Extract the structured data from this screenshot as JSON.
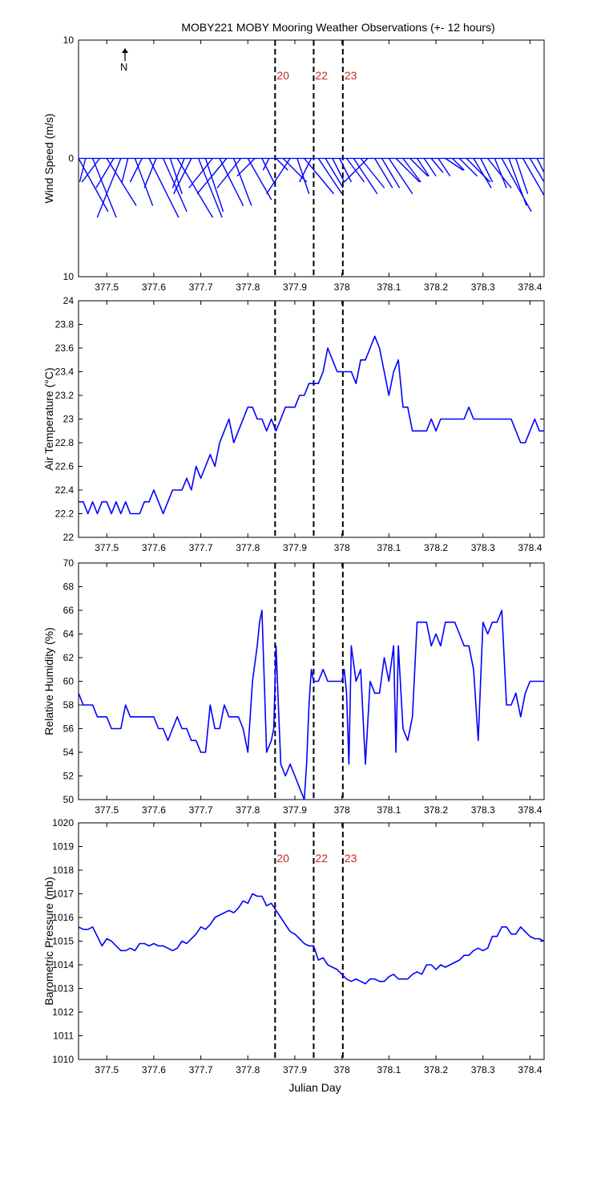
{
  "title": "MOBY221 MOBY Mooring Weather Observations (+- 12 hours)",
  "north_label": "N",
  "colors": {
    "series": "#0000ff",
    "marker_label": "#c0282a",
    "axis": "#000000"
  },
  "x_axis": {
    "label": "Julian Day",
    "xlim": [
      377.44,
      378.43
    ],
    "ticks": [
      377.5,
      377.6,
      377.7,
      377.8,
      377.9,
      378,
      378.1,
      378.2,
      378.3,
      378.4
    ],
    "tick_labels": [
      "377.5",
      "377.6",
      "377.7",
      "377.8",
      "377.9",
      "378",
      "378.1",
      "378.2",
      "378.3",
      "378.4"
    ]
  },
  "markers": [
    {
      "x": 377.858,
      "label": "20"
    },
    {
      "x": 377.94,
      "label": "22"
    },
    {
      "x": 378.002,
      "label": "23"
    }
  ],
  "chart_data": [
    {
      "type": "line",
      "subtype": "wind-stick",
      "ylabel": "Wind Speed (m/s)",
      "ylim": [
        -10,
        10
      ],
      "y_ticks": [
        -10,
        0,
        10
      ],
      "y_tick_labels": [
        "10",
        "0",
        "10"
      ],
      "show_marker_labels": true,
      "series": [
        {
          "name": "",
          "x": [
            377.44,
            377.455,
            377.47,
            377.485,
            377.5,
            377.515,
            377.53,
            377.545,
            377.56,
            377.575,
            377.59,
            377.605,
            377.62,
            377.635,
            377.65,
            377.665,
            377.68,
            377.695,
            377.71,
            377.725,
            377.74,
            377.755,
            377.77,
            377.785,
            377.8,
            377.815,
            377.83,
            377.845,
            377.86,
            377.875,
            377.89,
            377.905,
            377.92,
            377.935,
            377.95,
            377.965,
            377.98,
            377.995,
            378.01,
            378.025,
            378.04,
            378.055,
            378.07,
            378.085,
            378.1,
            378.115,
            378.13,
            378.145,
            378.16,
            378.175,
            378.19,
            378.205,
            378.22,
            378.235,
            378.25,
            378.265,
            378.28,
            378.295,
            378.31,
            378.325,
            378.34,
            378.355,
            378.37,
            378.385,
            378.4,
            378.415
          ],
          "u": [
            2.5,
            -0.5,
            2,
            -1.5,
            2.5,
            -1.5,
            -2,
            -0.5,
            1.5,
            -1,
            2.5,
            -1,
            2,
            1,
            3,
            -1,
            -1.5,
            2,
            1.5,
            -2,
            2,
            -2.5,
            1.5,
            -2,
            2,
            -1.5,
            1,
            -0.5,
            1,
            2,
            -2,
            1,
            2.5,
            -1,
            2,
            1.5,
            1,
            1,
            1.5,
            2,
            2,
            -2,
            1.5,
            1.5,
            2,
            2,
            1.5,
            1.5,
            1,
            1,
            1,
            1,
            1.5,
            1,
            1.5,
            2,
            1.5,
            1,
            2,
            1,
            2.5,
            1.5,
            1,
            2,
            1.5,
            1
          ],
          "v": [
            -4.5,
            -2,
            -5,
            -2,
            -4,
            -2.5,
            -5,
            -2,
            -4,
            -2,
            -5,
            -2.5,
            -4.5,
            -3,
            -5,
            -2.5,
            -3,
            -5,
            -4.5,
            -2.5,
            -4,
            -3,
            -4,
            -2.5,
            -3.5,
            -1.5,
            -2,
            -1,
            -1,
            -2,
            -3,
            -3,
            -3,
            -2,
            -3,
            -2.5,
            -2,
            -2,
            -2,
            -3,
            -2.5,
            -2,
            -2.5,
            -2.5,
            -3,
            -2,
            -2,
            -1.5,
            -1.5,
            -1.5,
            -1.2,
            -1.5,
            -1,
            -1,
            -1.5,
            -2,
            -2.5,
            -2,
            -2.5,
            -2.5,
            -4.5,
            -4,
            -3,
            -3.5,
            -2.5,
            -2
          ]
        }
      ]
    },
    {
      "type": "line",
      "ylabel": "Air Temperature (°C)",
      "ylim": [
        22,
        24
      ],
      "y_ticks": [
        22,
        22.2,
        22.4,
        22.6,
        22.8,
        23,
        23.2,
        23.4,
        23.6,
        23.8,
        24
      ],
      "y_tick_labels": [
        "22",
        "22.2",
        "22.4",
        "22.6",
        "22.8",
        "23",
        "23.2",
        "23.4",
        "23.6",
        "23.8",
        "24"
      ],
      "show_marker_labels": false,
      "series": [
        {
          "name": "",
          "x": [
            377.44,
            377.45,
            377.46,
            377.47,
            377.48,
            377.49,
            377.5,
            377.51,
            377.52,
            377.53,
            377.54,
            377.55,
            377.56,
            377.57,
            377.58,
            377.59,
            377.6,
            377.61,
            377.62,
            377.63,
            377.64,
            377.65,
            377.66,
            377.67,
            377.68,
            377.69,
            377.7,
            377.71,
            377.72,
            377.73,
            377.74,
            377.75,
            377.76,
            377.77,
            377.78,
            377.79,
            377.8,
            377.81,
            377.82,
            377.83,
            377.84,
            377.85,
            377.86,
            377.87,
            377.88,
            377.89,
            377.9,
            377.91,
            377.92,
            377.93,
            377.94,
            377.95,
            377.96,
            377.97,
            377.98,
            377.99,
            378,
            378.01,
            378.02,
            378.03,
            378.04,
            378.05,
            378.06,
            378.07,
            378.08,
            378.09,
            378.1,
            378.11,
            378.12,
            378.13,
            378.14,
            378.15,
            378.16,
            378.17,
            378.18,
            378.19,
            378.2,
            378.21,
            378.22,
            378.23,
            378.24,
            378.25,
            378.26,
            378.27,
            378.28,
            378.29,
            378.3,
            378.31,
            378.32,
            378.33,
            378.34,
            378.35,
            378.36,
            378.37,
            378.38,
            378.39,
            378.4,
            378.41,
            378.42,
            378.43
          ],
          "y": [
            22.3,
            22.3,
            22.2,
            22.3,
            22.2,
            22.3,
            22.3,
            22.2,
            22.3,
            22.2,
            22.3,
            22.2,
            22.2,
            22.2,
            22.3,
            22.3,
            22.4,
            22.3,
            22.2,
            22.3,
            22.4,
            22.4,
            22.4,
            22.5,
            22.4,
            22.6,
            22.5,
            22.6,
            22.7,
            22.6,
            22.8,
            22.9,
            23,
            22.8,
            22.9,
            23,
            23.1,
            23.1,
            23,
            23,
            22.9,
            23,
            22.9,
            23,
            23.1,
            23.1,
            23.1,
            23.2,
            23.2,
            23.3,
            23.3,
            23.3,
            23.4,
            23.6,
            23.5,
            23.4,
            23.4,
            23.4,
            23.4,
            23.3,
            23.5,
            23.5,
            23.6,
            23.7,
            23.6,
            23.4,
            23.2,
            23.4,
            23.5,
            23.1,
            23.1,
            22.9,
            22.9,
            22.9,
            22.9,
            23,
            22.9,
            23,
            23,
            23,
            23,
            23,
            23,
            23.1,
            23,
            23,
            23,
            23,
            23,
            23,
            23,
            23,
            23,
            22.9,
            22.8,
            22.8,
            22.9,
            23,
            22.9,
            22.9
          ]
        }
      ]
    },
    {
      "type": "line",
      "ylabel": "Relative Humidity (%)",
      "ylim": [
        50,
        70
      ],
      "y_ticks": [
        50,
        52,
        54,
        56,
        58,
        60,
        62,
        64,
        66,
        68,
        70
      ],
      "y_tick_labels": [
        "50",
        "52",
        "54",
        "56",
        "58",
        "60",
        "62",
        "64",
        "66",
        "68",
        "70"
      ],
      "show_marker_labels": false,
      "series": [
        {
          "name": "",
          "x": [
            377.44,
            377.45,
            377.46,
            377.47,
            377.48,
            377.49,
            377.5,
            377.51,
            377.52,
            377.53,
            377.54,
            377.55,
            377.56,
            377.57,
            377.58,
            377.59,
            377.6,
            377.61,
            377.62,
            377.63,
            377.64,
            377.65,
            377.66,
            377.67,
            377.68,
            377.69,
            377.7,
            377.71,
            377.72,
            377.73,
            377.74,
            377.75,
            377.76,
            377.77,
            377.78,
            377.79,
            377.8,
            377.81,
            377.82,
            377.825,
            377.83,
            377.835,
            377.84,
            377.85,
            377.855,
            377.86,
            377.865,
            377.87,
            377.88,
            377.89,
            377.9,
            377.91,
            377.92,
            377.925,
            377.93,
            377.935,
            377.94,
            377.945,
            377.95,
            377.96,
            377.97,
            377.98,
            377.99,
            378,
            378.005,
            378.01,
            378.015,
            378.02,
            378.03,
            378.04,
            378.05,
            378.06,
            378.07,
            378.08,
            378.09,
            378.1,
            378.11,
            378.115,
            378.12,
            378.13,
            378.14,
            378.15,
            378.16,
            378.17,
            378.18,
            378.19,
            378.2,
            378.21,
            378.22,
            378.23,
            378.24,
            378.25,
            378.26,
            378.27,
            378.28,
            378.29,
            378.3,
            378.31,
            378.32,
            378.33,
            378.34,
            378.35,
            378.36,
            378.37,
            378.38,
            378.39,
            378.4,
            378.41,
            378.42,
            378.43
          ],
          "y": [
            59,
            58,
            58,
            58,
            57,
            57,
            57,
            56,
            56,
            56,
            58,
            57,
            57,
            57,
            57,
            57,
            57,
            56,
            56,
            55,
            56,
            57,
            56,
            56,
            55,
            55,
            54,
            54,
            58,
            56,
            56,
            58,
            57,
            57,
            57,
            56,
            54,
            60,
            63,
            65,
            66,
            60,
            54,
            55,
            56,
            63,
            58,
            53,
            52,
            53,
            52,
            51,
            50,
            53,
            58,
            61,
            60,
            60,
            60,
            61,
            60,
            60,
            60,
            60,
            61,
            59,
            53,
            63,
            60,
            61,
            53,
            60,
            59,
            59,
            62,
            60,
            63,
            54,
            63,
            56,
            55,
            57,
            65,
            65,
            65,
            63,
            64,
            63,
            65,
            65,
            65,
            64,
            63,
            63,
            61,
            55,
            65,
            64,
            65,
            65,
            66,
            58,
            58,
            59,
            57,
            59,
            60,
            60,
            60,
            60
          ]
        }
      ]
    },
    {
      "type": "line",
      "ylabel": "Barometric Pressure (mb)",
      "ylim": [
        1010,
        1020
      ],
      "y_ticks": [
        1010,
        1011,
        1012,
        1013,
        1014,
        1015,
        1016,
        1017,
        1018,
        1019,
        1020
      ],
      "y_tick_labels": [
        "1010",
        "1011",
        "1012",
        "1013",
        "1014",
        "1015",
        "1016",
        "1017",
        "1018",
        "1019",
        "1020"
      ],
      "show_marker_labels": true,
      "series": [
        {
          "name": "",
          "x": [
            377.44,
            377.45,
            377.46,
            377.47,
            377.48,
            377.49,
            377.5,
            377.51,
            377.52,
            377.53,
            377.54,
            377.55,
            377.56,
            377.57,
            377.58,
            377.59,
            377.6,
            377.61,
            377.62,
            377.63,
            377.64,
            377.65,
            377.66,
            377.67,
            377.68,
            377.69,
            377.7,
            377.71,
            377.72,
            377.73,
            377.74,
            377.75,
            377.76,
            377.77,
            377.78,
            377.79,
            377.8,
            377.81,
            377.82,
            377.83,
            377.84,
            377.85,
            377.86,
            377.87,
            377.88,
            377.89,
            377.9,
            377.91,
            377.92,
            377.93,
            377.94,
            377.95,
            377.96,
            377.97,
            377.98,
            377.99,
            378,
            378.01,
            378.02,
            378.03,
            378.04,
            378.05,
            378.06,
            378.07,
            378.08,
            378.09,
            378.1,
            378.11,
            378.12,
            378.13,
            378.14,
            378.15,
            378.16,
            378.17,
            378.18,
            378.19,
            378.2,
            378.21,
            378.22,
            378.23,
            378.24,
            378.25,
            378.26,
            378.27,
            378.28,
            378.29,
            378.3,
            378.31,
            378.32,
            378.33,
            378.34,
            378.35,
            378.36,
            378.37,
            378.38,
            378.39,
            378.4,
            378.41,
            378.42,
            378.43
          ],
          "y": [
            1015.6,
            1015.5,
            1015.5,
            1015.6,
            1015.2,
            1014.8,
            1015.1,
            1015,
            1014.8,
            1014.6,
            1014.6,
            1014.7,
            1014.6,
            1014.9,
            1014.9,
            1014.8,
            1014.9,
            1014.8,
            1014.8,
            1014.7,
            1014.6,
            1014.7,
            1015,
            1014.9,
            1015.1,
            1015.3,
            1015.6,
            1015.5,
            1015.7,
            1016,
            1016.1,
            1016.2,
            1016.3,
            1016.2,
            1016.4,
            1016.7,
            1016.6,
            1017,
            1016.9,
            1016.9,
            1016.5,
            1016.6,
            1016.3,
            1016,
            1015.7,
            1015.4,
            1015.3,
            1015.1,
            1014.9,
            1014.8,
            1014.8,
            1014.2,
            1014.3,
            1014,
            1013.9,
            1013.8,
            1013.6,
            1013.4,
            1013.3,
            1013.4,
            1013.3,
            1013.2,
            1013.4,
            1013.4,
            1013.3,
            1013.3,
            1013.5,
            1013.6,
            1013.4,
            1013.4,
            1013.4,
            1013.6,
            1013.7,
            1013.6,
            1014,
            1014,
            1013.8,
            1014,
            1013.9,
            1014,
            1014.1,
            1014.2,
            1014.4,
            1014.4,
            1014.6,
            1014.7,
            1014.6,
            1014.7,
            1015.2,
            1015.2,
            1015.6,
            1015.6,
            1015.3,
            1015.3,
            1015.6,
            1015.4,
            1015.2,
            1015.1,
            1015.1,
            1015
          ]
        }
      ]
    }
  ]
}
